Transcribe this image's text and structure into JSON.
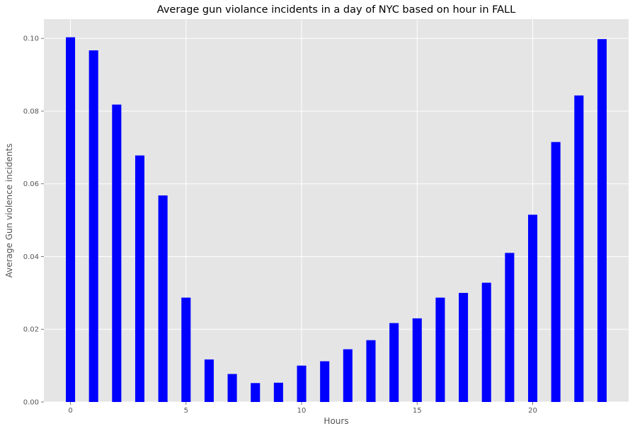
{
  "chart_data": {
    "type": "bar",
    "title": "Average gun violance incidents in a day of NYC based on hour in FALL",
    "xlabel": "Hours",
    "ylabel": "Average Gun violence incidents",
    "x": [
      0,
      1,
      2,
      3,
      4,
      5,
      6,
      7,
      8,
      9,
      10,
      11,
      12,
      13,
      14,
      15,
      16,
      17,
      18,
      19,
      20,
      21,
      22,
      23
    ],
    "values": [
      0.1003,
      0.0967,
      0.0818,
      0.0678,
      0.0568,
      0.0287,
      0.0117,
      0.0077,
      0.0052,
      0.0053,
      0.01,
      0.0112,
      0.0145,
      0.017,
      0.0217,
      0.023,
      0.0287,
      0.03,
      0.0328,
      0.041,
      0.0515,
      0.0715,
      0.0843,
      0.0998
    ],
    "xticks": [
      0,
      5,
      10,
      15,
      20
    ],
    "xtick_labels": [
      "0",
      "5",
      "10",
      "15",
      "20"
    ],
    "yticks": [
      0.0,
      0.02,
      0.04,
      0.06,
      0.08,
      0.1
    ],
    "ytick_labels": [
      "0.00",
      "0.02",
      "0.04",
      "0.06",
      "0.08",
      "0.10"
    ],
    "xlim": [
      -1.15,
      24.15
    ],
    "ylim": [
      0,
      0.1053
    ],
    "bar_color": "#0000ff",
    "grid": true,
    "background_color": "#e5e5e5",
    "grid_color": "#ffffff"
  }
}
